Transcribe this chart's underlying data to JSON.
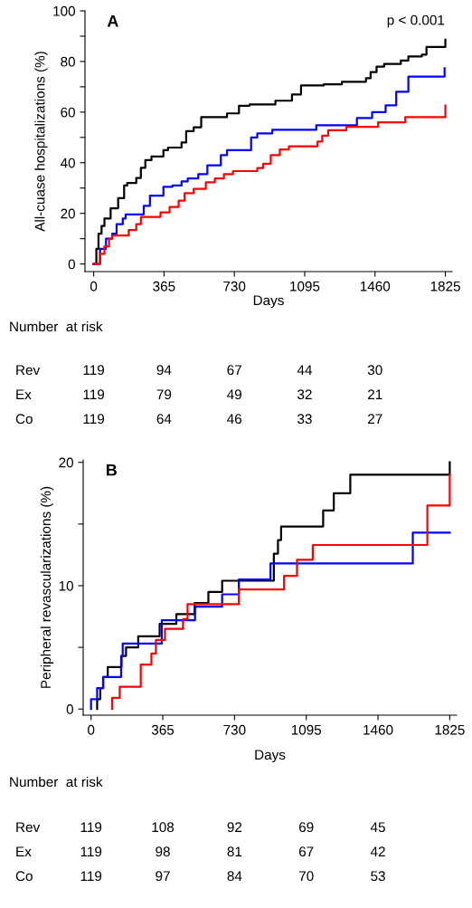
{
  "chart_data": [
    {
      "type": "step",
      "title": "A",
      "xlabel": "Days",
      "ylabel": "All-cuase hospitalizations (%)",
      "xlim": [
        -45,
        1860
      ],
      "ylim": [
        -3,
        100
      ],
      "xticks": [
        0,
        365,
        730,
        1095,
        1460,
        1825
      ],
      "yticks": [
        0,
        {
          "value": 10,
          "label": null
        },
        20,
        {
          "value": 30,
          "label": null
        },
        40,
        {
          "value": 50,
          "label": null
        },
        60,
        {
          "value": 70,
          "label": null
        },
        80,
        {
          "value": 90,
          "label": null
        },
        100
      ],
      "grid": false,
      "legend": false,
      "series": [
        {
          "color": "#000000",
          "x": [
            0,
            14,
            25,
            41,
            56,
            88,
            127,
            158,
            174,
            221,
            245,
            268,
            300,
            362,
            386,
            456,
            480,
            519,
            558,
            692,
            754,
            809,
            943,
            1029,
            1076,
            1194,
            1288,
            1413,
            1437,
            1468,
            1507,
            1594,
            1633,
            1703,
            1727,
            1825,
            1825
          ],
          "values": [
            0,
            6,
            12,
            15,
            18,
            22,
            26,
            31,
            32,
            34,
            38,
            41,
            42.5,
            45,
            46,
            48,
            52.5,
            54,
            58,
            59.5,
            62.5,
            63,
            64.5,
            67,
            70.5,
            71,
            72,
            73.4,
            75.8,
            78,
            79,
            80.4,
            82,
            82.7,
            85.7,
            85.7,
            88.6
          ]
        },
        {
          "color": "#0000ff",
          "x": [
            0,
            33,
            64,
            96,
            119,
            151,
            166,
            260,
            292,
            362,
            409,
            456,
            488,
            543,
            590,
            660,
            692,
            817,
            849,
            927,
            1155,
            1366,
            1445,
            1515,
            1570,
            1633,
            1821,
            1821
          ],
          "values": [
            0,
            6,
            10,
            12,
            15.7,
            18,
            19.6,
            23,
            27,
            30.5,
            31,
            32.6,
            33.8,
            35.5,
            39,
            43,
            45,
            50,
            51.6,
            53,
            54.8,
            57.7,
            60,
            62.7,
            68,
            74,
            74,
            77.3
          ]
        },
        {
          "color": "#ff0000",
          "x": [
            0,
            33,
            56,
            80,
            96,
            182,
            221,
            245,
            347,
            394,
            441,
            472,
            519,
            582,
            629,
            676,
            723,
            849,
            880,
            919,
            966,
            1013,
            1162,
            1186,
            1217,
            1311,
            1476,
            1617,
            1825,
            1825
          ],
          "values": [
            0,
            4,
            7,
            10,
            11.3,
            13.4,
            15.7,
            18.6,
            20.4,
            22.5,
            25,
            28,
            29.7,
            32.3,
            33.8,
            35.5,
            36.7,
            37.9,
            39.6,
            43,
            45.2,
            46.5,
            48.4,
            50.7,
            52.8,
            54.2,
            56,
            58,
            58,
            62.6
          ]
        }
      ],
      "annotations": [
        "p < 0.001",
        "Number  at risk",
        "Rev",
        "119",
        "94",
        "67",
        "44",
        "30",
        "Ex",
        "119",
        "79",
        "49",
        "32",
        "21",
        "Co",
        "119",
        "64",
        "46",
        "33",
        "27"
      ]
    },
    {
      "type": "step",
      "title": "B",
      "xlabel": "Days",
      "ylabel": "Peripheral revascularizations (%)",
      "xlim": [
        -40,
        1860
      ],
      "ylim": [
        -0.5,
        20.2
      ],
      "xticks": [
        0,
        365,
        730,
        1095,
        1460,
        1825
      ],
      "yticks": [
        0,
        {
          "value": 5,
          "label": null
        },
        10,
        {
          "value": 15,
          "label": null
        },
        20
      ],
      "grid": false,
      "legend": false,
      "series": [
        {
          "color": "#000000",
          "x": [
            31,
            31,
            47,
            62,
            85,
            155,
            178,
            240,
            349,
            434,
            527,
            597,
            667,
            930,
            951,
            967,
            1181,
            1235,
            1319,
            1825,
            1825
          ],
          "values": [
            0,
            0.8,
            1.7,
            2.6,
            3.4,
            4.3,
            5,
            5.9,
            6.9,
            7.7,
            8.6,
            9.5,
            10.4,
            12.6,
            13.7,
            14.8,
            16.1,
            17.5,
            19,
            19,
            20
          ]
        },
        {
          "color": "#0000ff",
          "x": [
            0,
            0,
            31,
            61,
            153,
            161,
            360,
            529,
            667,
            752,
            913,
            1637,
            1825
          ],
          "values": [
            0,
            0.8,
            1.7,
            2.6,
            4.3,
            5.3,
            7.2,
            8.3,
            9.3,
            10.5,
            11.8,
            14.3,
            14.3
          ]
        },
        {
          "color": "#ff0000",
          "x": [
            107,
            107,
            146,
            253,
            307,
            330,
            376,
            468,
            491,
            752,
            982,
            1048,
            1128,
            1711,
            1825,
            1825
          ],
          "values": [
            0,
            0.9,
            1.8,
            3.6,
            4.5,
            5.6,
            6.5,
            7.3,
            8.5,
            9.7,
            10.8,
            12.1,
            13.3,
            16.5,
            16.5,
            19
          ]
        }
      ],
      "annotations": [
        "Number  at risk",
        "Rev",
        "119",
        "108",
        "92",
        "69",
        "45",
        "Ex",
        "119",
        "98",
        "81",
        "67",
        "42",
        "Co",
        "119",
        "97",
        "84",
        "70",
        "53"
      ]
    }
  ]
}
